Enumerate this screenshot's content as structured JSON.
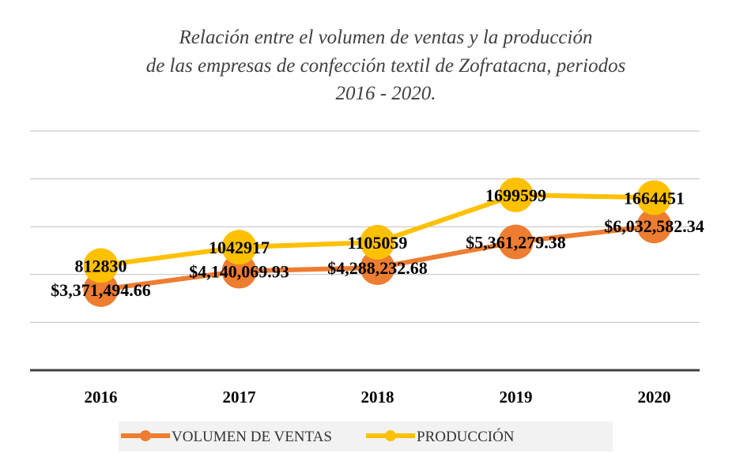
{
  "chart_data": {
    "type": "line",
    "title": [
      "Relación entre el volumen de ventas y la producción",
      "de las empresas de confección textil de Zofratacna, periodos",
      "2016 - 2020."
    ],
    "categories": [
      "2016",
      "2017",
      "2018",
      "2019",
      "2020"
    ],
    "series": [
      {
        "name": "VOLUMEN DE VENTAS",
        "color": "#ed7d31",
        "values": [
          3371494.66,
          4140069.93,
          4288232.68,
          5361279.38,
          6032582.34
        ],
        "value_labels": [
          "$3,371,494.66",
          "$4,140,069.93",
          "$4,288,232.68",
          "$5,361,279.38",
          "$6,032,582.34"
        ]
      },
      {
        "name": "PRODUCCIÓN",
        "color": "#ffc000",
        "axis": "y2",
        "values": [
          812830,
          1042917,
          1105059,
          1699599,
          1664451
        ]
      }
    ],
    "ylim": [
      0,
      10000000
    ],
    "yticks": [
      0,
      2000000,
      4000000,
      6000000,
      8000000,
      10000000
    ],
    "y2lim": [
      -500000,
      2500000
    ],
    "grid": true,
    "legend": "bottom"
  }
}
